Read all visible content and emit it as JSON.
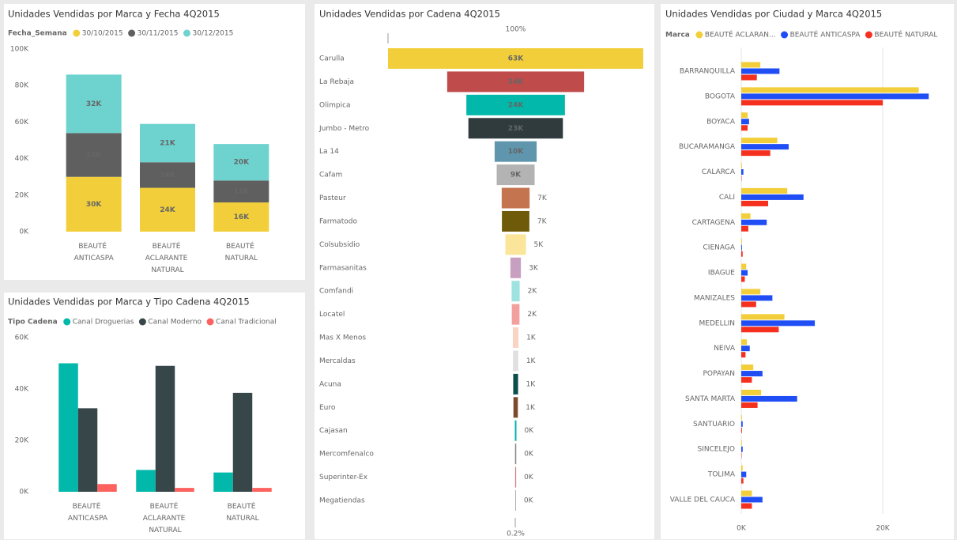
{
  "chart_data": [
    {
      "type": "stacked_bar",
      "title": "Unidades Vendidas por Marca y Fecha 4Q2015",
      "legend_title": "Fecha_Semana",
      "categories": [
        "BEAUTÉ ANTICASPA",
        "BEAUTÉ ACLARANTE NATURAL",
        "BEAUTÉ NATURAL"
      ],
      "series": [
        {
          "name": "30/10/2015",
          "color": "#f2cf3a",
          "values": [
            30000,
            24000,
            16000
          ],
          "value_labels": [
            "30K",
            "24K",
            "16K"
          ]
        },
        {
          "name": "30/11/2015",
          "color": "#5f5f5f",
          "values": [
            24000,
            14000,
            12000
          ],
          "value_labels": [
            "24K",
            "14K",
            "12K"
          ]
        },
        {
          "name": "30/12/2015",
          "color": "#6ed3cf",
          "values": [
            32000,
            21000,
            20000
          ],
          "value_labels": [
            "32K",
            "21K",
            "20K"
          ]
        }
      ],
      "ylim": [
        0,
        100000
      ],
      "yticks": [
        {
          "value": 0,
          "label": "0K"
        },
        {
          "value": 20000,
          "label": "20K"
        },
        {
          "value": 40000,
          "label": "40K"
        },
        {
          "value": 60000,
          "label": "60K"
        },
        {
          "value": 80000,
          "label": "80K"
        },
        {
          "value": 100000,
          "label": "100K"
        }
      ]
    },
    {
      "type": "grouped_bar",
      "title": "Unidades Vendidas por Marca y Tipo Cadena 4Q2015",
      "legend_title": "Tipo Cadena",
      "categories": [
        "BEAUTÉ ANTICASPA",
        "BEAUTÉ ACLARANTE NATURAL",
        "BEAUTÉ NATURAL"
      ],
      "series": [
        {
          "name": "Canal Droguerias",
          "color": "#01b8aa",
          "values": [
            50000,
            8500,
            7500
          ]
        },
        {
          "name": "Canal Moderno",
          "color": "#374649",
          "values": [
            32500,
            49000,
            38500
          ]
        },
        {
          "name": "Canal Tradicional",
          "color": "#fd625e",
          "values": [
            3000,
            1500,
            1500
          ]
        }
      ],
      "ylim": [
        0,
        60000
      ],
      "yticks": [
        {
          "value": 0,
          "label": "0K"
        },
        {
          "value": 20000,
          "label": "20K"
        },
        {
          "value": 40000,
          "label": "40K"
        },
        {
          "value": 60000,
          "label": "60K"
        }
      ]
    },
    {
      "type": "funnel",
      "title": "Unidades Vendidas por Cadena 4Q2015",
      "top_label": "100%",
      "bottom_label": "0.2%",
      "categories": [
        "Carulla",
        "La Rebaja",
        "Olimpica",
        "Jumbo - Metro",
        "La 14",
        "Cafam",
        "Pasteur",
        "Farmatodo",
        "Colsubsidio",
        "Farmasanitas",
        "Comfandi",
        "Locatel",
        "Mas X Menos",
        "Mercaldas",
        "Acuna",
        "Euro",
        "Cajasan",
        "Mercomfenalco",
        "Superinter-Ex",
        "Megatiendas"
      ],
      "values": [
        63200,
        33900,
        24400,
        23400,
        10400,
        9400,
        6900,
        6800,
        5100,
        2600,
        2000,
        1900,
        1400,
        1300,
        1200,
        1100,
        400,
        300,
        250,
        150
      ],
      "value_labels": [
        "63K",
        "34K",
        "24K",
        "23K",
        "10K",
        "9K",
        "7K",
        "7K",
        "5K",
        "3K",
        "2K",
        "2K",
        "1K",
        "1K",
        "1K",
        "1K",
        "0K",
        "0K",
        "0K",
        "0K"
      ],
      "colors": [
        "#f2cf3a",
        "#c04b4b",
        "#01b8aa",
        "#2f3b3d",
        "#5f96ad",
        "#b3b3b3",
        "#c4744e",
        "#6e5a08",
        "#fbe59a",
        "#c79fc0",
        "#9ee3df",
        "#f2a09e",
        "#f9d4c5",
        "#e0e0e0",
        "#0b4e4a",
        "#7a4a2e",
        "#01b8aa",
        "#888888",
        "#d08080",
        "#999999"
      ]
    },
    {
      "type": "hbar",
      "title": "Unidades Vendidas por Ciudad y Marca 4Q2015",
      "legend_title": "Marca",
      "categories": [
        "BARRANQUILLA",
        "BOGOTA",
        "BOYACA",
        "BUCARAMANGA",
        "CALARCA",
        "CALI",
        "CARTAGENA",
        "CIENAGA",
        "IBAGUE",
        "MANIZALES",
        "MEDELLIN",
        "NEIVA",
        "POPAYAN",
        "SANTA MARTA",
        "SANTUARIO",
        "SINCELEJO",
        "TOLIMA",
        "VALLE DEL CAUCA"
      ],
      "series": [
        {
          "name": "BEAUTÉ ACLARAN...",
          "color": "#f2cf3a",
          "values": [
            2700,
            25100,
            900,
            5100,
            100,
            6500,
            1300,
            100,
            700,
            2700,
            6100,
            800,
            1700,
            2800,
            100,
            100,
            200,
            1500
          ]
        },
        {
          "name": "BEAUTÉ ANTICASPA",
          "color": "#1f4ef5",
          "values": [
            5400,
            26500,
            1100,
            6700,
            300,
            8800,
            3600,
            100,
            900,
            4400,
            10400,
            1200,
            3000,
            7900,
            200,
            200,
            700,
            3000
          ]
        },
        {
          "name": "BEAUTÉ NATURAL",
          "color": "#f5301f",
          "values": [
            2200,
            20000,
            900,
            4100,
            50,
            3800,
            1000,
            200,
            500,
            2100,
            5300,
            600,
            1500,
            2300,
            100,
            50,
            300,
            1500
          ]
        }
      ],
      "xlim": [
        0,
        29000
      ],
      "xticks": [
        {
          "value": 0,
          "label": "0K"
        },
        {
          "value": 20000,
          "label": "20K"
        }
      ]
    }
  ]
}
